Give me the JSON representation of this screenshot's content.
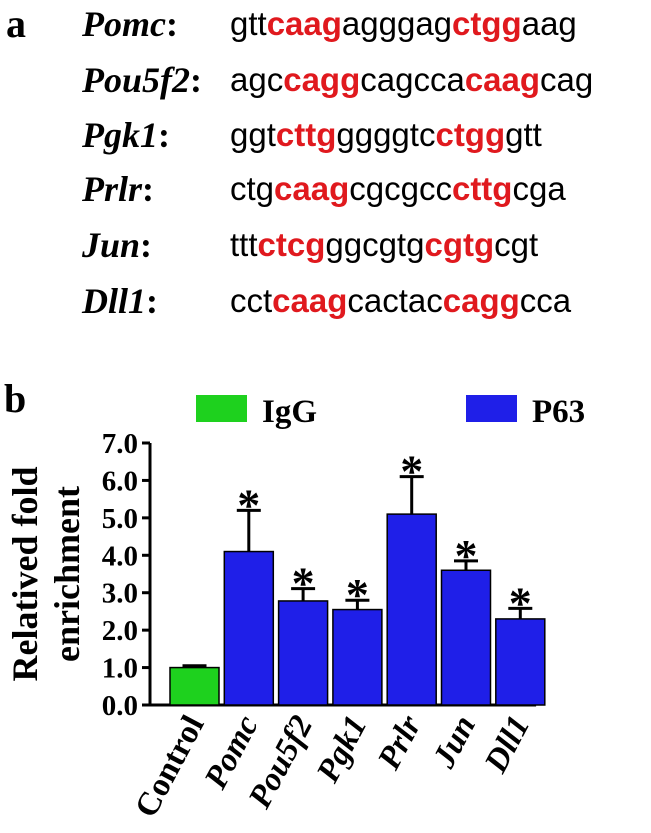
{
  "panel_a": {
    "label": "a",
    "rows": [
      {
        "gene": "Pomc",
        "colon": ":",
        "segments": [
          {
            "text": "gtt",
            "hl": false
          },
          {
            "text": "caag",
            "hl": true
          },
          {
            "text": "agggag",
            "hl": false
          },
          {
            "text": "ctgg",
            "hl": true
          },
          {
            "text": "aag",
            "hl": false
          }
        ]
      },
      {
        "gene": "Pou5f2",
        "colon": ":",
        "segments": [
          {
            "text": "agc",
            "hl": false
          },
          {
            "text": "cagg",
            "hl": true
          },
          {
            "text": "cagcca",
            "hl": false
          },
          {
            "text": "caag",
            "hl": true
          },
          {
            "text": "cag",
            "hl": false
          }
        ]
      },
      {
        "gene": "Pgk1",
        "colon": ":",
        "segments": [
          {
            "text": "ggt",
            "hl": false
          },
          {
            "text": "cttg",
            "hl": true
          },
          {
            "text": "ggggtc",
            "hl": false
          },
          {
            "text": "ctgg",
            "hl": true
          },
          {
            "text": "gtt",
            "hl": false
          }
        ]
      },
      {
        "gene": "Prlr",
        "colon": ":",
        "segments": [
          {
            "text": "ctg",
            "hl": false
          },
          {
            "text": "caag",
            "hl": true
          },
          {
            "text": "cgcgcc",
            "hl": false
          },
          {
            "text": "cttg",
            "hl": true
          },
          {
            "text": "cga",
            "hl": false
          }
        ]
      },
      {
        "gene": "Jun",
        "colon": ":",
        "segments": [
          {
            "text": "ttt",
            "hl": false
          },
          {
            "text": "ctcg",
            "hl": true
          },
          {
            "text": "ggcgtg",
            "hl": false
          },
          {
            "text": "cgtg",
            "hl": true
          },
          {
            "text": "cgt",
            "hl": false
          }
        ]
      },
      {
        "gene": "Dll1",
        "colon": ":",
        "segments": [
          {
            "text": "cct",
            "hl": false
          },
          {
            "text": "caag",
            "hl": true
          },
          {
            "text": "cactac",
            "hl": false
          },
          {
            "text": "cagg",
            "hl": true
          },
          {
            "text": "cca",
            "hl": false
          }
        ]
      }
    ]
  },
  "panel_b": {
    "label": "b"
  },
  "chart_data": {
    "type": "bar",
    "categories": [
      "Control",
      "Pomc",
      "Pou5f2",
      "Pgk1",
      "Prlr",
      "Jun",
      "Dll1"
    ],
    "values": [
      1.0,
      4.1,
      2.78,
      2.55,
      5.1,
      3.6,
      2.3
    ],
    "errors": [
      0.05,
      1.1,
      0.33,
      0.25,
      1.0,
      0.25,
      0.28
    ],
    "significance": [
      "",
      "*",
      "*",
      "*",
      "*",
      "*",
      "*"
    ],
    "bar_groups": [
      "IgG",
      "P63",
      "P63",
      "P63",
      "P63",
      "P63",
      "P63"
    ],
    "legend": [
      {
        "name": "IgG",
        "color": "#1ed11e"
      },
      {
        "name": "P63",
        "color": "#1f1fe8"
      }
    ],
    "legend_position": "top",
    "ylabel_lines": [
      "Relatived fold",
      "enrichment"
    ],
    "xlabel": "",
    "ylim": [
      0,
      7.0
    ],
    "yticks": [
      "0.0",
      "1.0",
      "2.0",
      "3.0",
      "4.0",
      "5.0",
      "6.0",
      "7.0"
    ],
    "grid": false
  }
}
